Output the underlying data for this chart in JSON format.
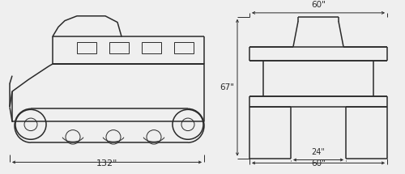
{
  "bg_color": "#efefef",
  "line_color": "#2a2a2a",
  "lw": 1.1,
  "tlw": 0.7,
  "dim_132": "132\"",
  "dim_60_top": "60\"",
  "dim_67": "67\"",
  "dim_24": "24\"",
  "dim_60_bot": "60\""
}
